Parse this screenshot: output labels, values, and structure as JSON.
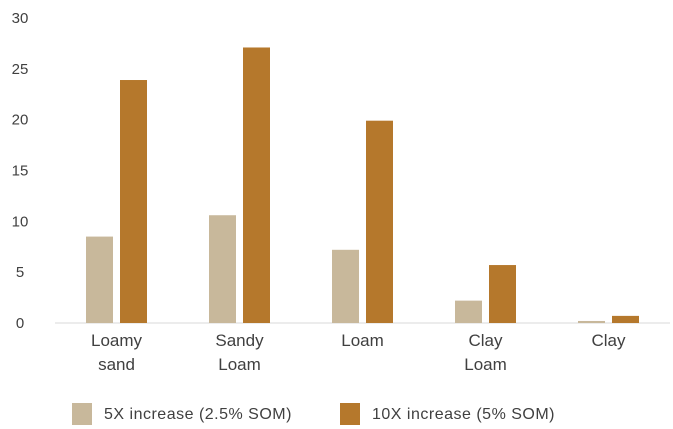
{
  "chart_data": {
    "type": "bar",
    "categories": [
      [
        "Loamy",
        "sand"
      ],
      [
        "Sandy",
        "Loam"
      ],
      [
        "Loam"
      ],
      [
        "Clay",
        "Loam"
      ],
      [
        "Clay"
      ]
    ],
    "series": [
      {
        "name": "5X increase (2.5% SOM)",
        "values": [
          8.5,
          10.6,
          7.2,
          2.2,
          0.2
        ],
        "color": "#c8b89b"
      },
      {
        "name": "10X increase (5% SOM)",
        "values": [
          23.9,
          27.1,
          19.9,
          5.7,
          0.7
        ],
        "color": "#b5782c"
      }
    ],
    "ylim": [
      0,
      30
    ],
    "yticks": [
      "0",
      "5",
      "10",
      "15",
      "20",
      "25",
      "30"
    ],
    "grid": false,
    "legend_position": "bottom"
  }
}
